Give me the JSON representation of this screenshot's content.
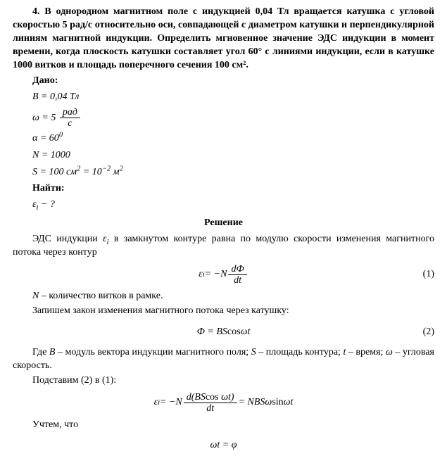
{
  "problem": {
    "number": "4.",
    "text": "В однородном магнитном поле с индукцией 0,04 Тл вращается катушка с угловой скоростью 5 рад/с относительно оси, совпадающей с диаметром катушки и перпендикулярной линиям магнитной индукции. Определить мгновенное значение ЭДС индукции в момент времени, когда плоскость катушки составляет угол 60° с линиями индукции, если в катушке 1000 витков и площадь поперечного сечения 100 см²."
  },
  "given": {
    "label": "Дано:",
    "B": {
      "sym": "B",
      "eq": " = 0,04 ",
      "unit": "Тл"
    },
    "omega": {
      "sym": "ω",
      "eq": " = 5 ",
      "num": "рад",
      "den": "с"
    },
    "alpha": {
      "sym": "α",
      "eq": " = 60",
      "sup": "0"
    },
    "N": {
      "sym": "N",
      "eq": " = 1000"
    },
    "S": {
      "sym": "S",
      "eq": " = 100 ",
      "unit1": "см",
      "sup1": "2",
      "eq2": " = 10",
      "sup2": "−2",
      "unit2": " м",
      "sup3": "2"
    }
  },
  "find": {
    "label": "Найти:",
    "epsilon": {
      "sym": "ε",
      "sub": "i",
      "tail": " − ?"
    }
  },
  "solution": {
    "title": "Решение",
    "p1_a": "ЭДС индукции ",
    "p1_eps": "ε",
    "p1_eps_sub": "i",
    "p1_b": " в замкнутом контуре равна по модулю скорости изменения магнитного потока через контур",
    "eq1": {
      "lhs": "ε",
      "lhs_sub": "i",
      "mid": " = −N ",
      "num": "dФ",
      "den": "dt",
      "number": "(1)"
    },
    "p2_a": "N",
    "p2_b": " – количество витков в рамке.",
    "p3": "Запишем закон изменения магнитного потока через катушку:",
    "eq2": {
      "text_a": "Ф = BS",
      "text_b": "cos ",
      "text_c": "ωt",
      "number": "(2)"
    },
    "p4_a": "Где ",
    "p4_B": "B",
    "p4_b": " – модуль вектора индукции магнитного поля; ",
    "p4_S": "S",
    "p4_c": " – площадь контура; ",
    "p4_t": "t",
    "p4_d": " – время; ",
    "p4_w": "ω",
    "p4_e": " – угловая скорость.",
    "p5": "Подставим (2) в (1):",
    "eq3": {
      "lhs": "ε",
      "lhs_sub": "i",
      "mid": " = −N ",
      "num_a": "d",
      "num_b": "(BS",
      "num_c": "cos ",
      "num_d": "ωt)",
      "den": "dt",
      "rhs_a": " = NBSω",
      "rhs_b": "sin ",
      "rhs_c": "ωt"
    },
    "p6": "Учтем, что",
    "eq4": {
      "text": "ωt = φ"
    }
  },
  "colors": {
    "text": "#000000",
    "background": "#ffffff"
  },
  "typography": {
    "fontFamily": "Times New Roman",
    "baseFontSizePx": 14
  }
}
